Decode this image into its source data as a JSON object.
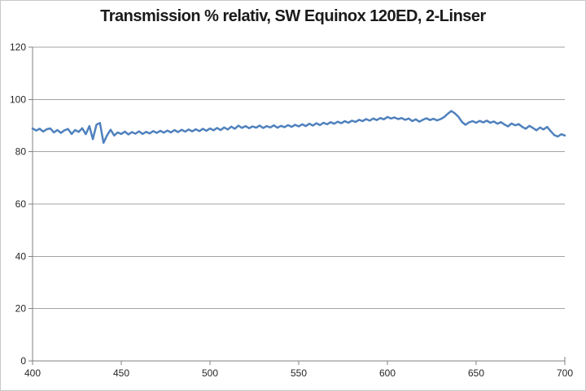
{
  "window": {
    "background": "#ffffff",
    "border_color": "#c9c9c9"
  },
  "colors": {
    "gridline": "#a3a3a3",
    "axis": "#808080",
    "tick_label": "#262626",
    "title": "#1a1a1a",
    "series_line": "#4f81bd"
  },
  "chart_data": {
    "type": "line",
    "title": "Transmission % relativ, SW Equinox 120ED, 2-Linser",
    "xlabel": "",
    "ylabel": "",
    "xlim": [
      400,
      700
    ],
    "ylim": [
      0,
      120
    ],
    "x_ticks": [
      400,
      450,
      500,
      550,
      600,
      650,
      700
    ],
    "y_ticks": [
      0,
      20,
      40,
      60,
      80,
      100,
      120
    ],
    "grid": "horizontal-only",
    "legend_position": "none",
    "series": [
      {
        "name": "Transmission % relativ",
        "color": "#4f81bd",
        "x_start": 400,
        "x_step": 2,
        "values": [
          88.9,
          88.1,
          88.8,
          87.7,
          88.6,
          88.9,
          87.4,
          88.3,
          87.2,
          88.2,
          88.7,
          86.8,
          88.3,
          87.6,
          89.0,
          86.7,
          89.8,
          84.8,
          90.3,
          91.0,
          83.4,
          86.3,
          88.4,
          86.2,
          87.4,
          86.8,
          87.7,
          86.6,
          87.5,
          86.9,
          87.8,
          86.8,
          87.6,
          87.0,
          87.9,
          87.2,
          88.0,
          87.3,
          88.1,
          87.4,
          88.3,
          87.5,
          88.4,
          87.7,
          88.5,
          87.8,
          88.6,
          87.9,
          88.8,
          88.0,
          88.9,
          88.2,
          89.1,
          88.3,
          89.3,
          88.5,
          89.6,
          88.8,
          90.0,
          89.1,
          89.8,
          89.0,
          89.7,
          89.2,
          90.0,
          89.1,
          89.8,
          89.3,
          90.1,
          89.2,
          89.9,
          89.4,
          90.2,
          89.5,
          90.3,
          89.7,
          90.5,
          89.8,
          90.7,
          90.0,
          90.9,
          90.2,
          91.1,
          90.5,
          91.3,
          90.7,
          91.5,
          90.9,
          91.7,
          91.1,
          91.9,
          91.4,
          92.2,
          91.7,
          92.5,
          91.9,
          92.7,
          92.1,
          92.9,
          92.4,
          93.3,
          92.7,
          93.1,
          92.5,
          92.9,
          92.2,
          92.7,
          91.7,
          92.4,
          91.5,
          92.2,
          92.8,
          92.1,
          92.6,
          92.0,
          92.5,
          93.3,
          94.5,
          95.6,
          94.7,
          93.4,
          91.4,
          90.3,
          91.2,
          91.7,
          91.1,
          91.8,
          91.2,
          91.9,
          91.1,
          91.6,
          90.7,
          91.3,
          90.4,
          89.7,
          90.8,
          90.1,
          90.6,
          89.5,
          88.8,
          89.9,
          89.1,
          88.2,
          89.3,
          88.5,
          89.5,
          87.9,
          86.4,
          85.8,
          86.7,
          86.2
        ]
      }
    ]
  }
}
